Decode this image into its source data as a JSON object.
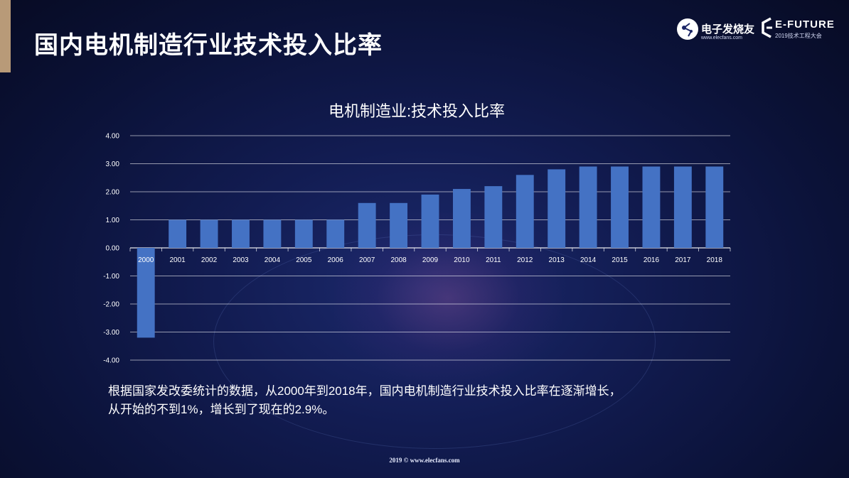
{
  "slide": {
    "title": "国内电机制造行业技术投入比率",
    "caption_line1": "根据国家发改委统计的数据，从2000年到2018年，国内电机制造行业技术投入比率在逐渐增长，",
    "caption_line2": "从开始的不到1%，增长到了现在的2.9%。",
    "footer": "2019 © www.elecfans.com"
  },
  "logos": {
    "elecfans_name": "电子发烧友",
    "elecfans_url": "www.elecfans.com",
    "efuture_name": "E-FUTURE",
    "efuture_sub": "2019技术工程大会"
  },
  "colors": {
    "bar": "#4472c4",
    "grid": "#ffffff",
    "accent": "#b89a78"
  },
  "chart_data": {
    "type": "bar",
    "title": "电机制造业:技术投入比率",
    "categories": [
      "2000",
      "2001",
      "2002",
      "2003",
      "2004",
      "2005",
      "2006",
      "2007",
      "2008",
      "2009",
      "2010",
      "2011",
      "2012",
      "2013",
      "2014",
      "2015",
      "2016",
      "2017",
      "2018"
    ],
    "values": [
      -3.2,
      1.0,
      1.0,
      1.0,
      1.0,
      1.0,
      1.0,
      1.6,
      1.6,
      1.9,
      2.1,
      2.2,
      2.6,
      2.8,
      2.9,
      2.9,
      2.9,
      2.9,
      2.9
    ],
    "ylim": [
      -4,
      4
    ],
    "yticks": [
      4,
      3,
      2,
      1,
      0,
      -1,
      -2,
      -3,
      -4
    ],
    "ytick_labels": [
      "4.00",
      "3.00",
      "2.00",
      "1.00",
      "0.00",
      "-1.00",
      "-2.00",
      "-3.00",
      "-4.00"
    ],
    "grid": true,
    "legend": "none"
  }
}
